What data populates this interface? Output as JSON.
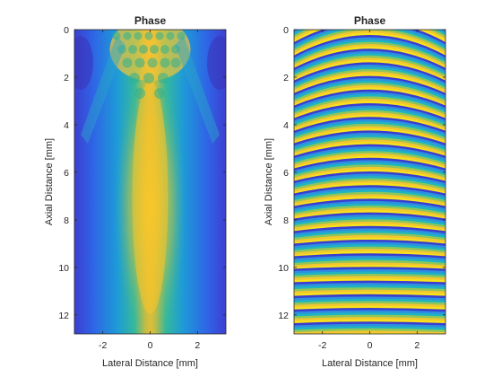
{
  "chart_data": [
    {
      "type": "heatmap",
      "panel": "left",
      "title": "Phase",
      "xlabel": "Lateral Distance [mm]",
      "ylabel": "Axial Distance [mm]",
      "xlim": [
        -3.2,
        3.2
      ],
      "ylim": [
        0,
        12.8
      ],
      "y_reversed": true,
      "xticks": [
        -2,
        0,
        2
      ],
      "yticks": [
        0,
        2,
        4,
        6,
        8,
        10,
        12
      ],
      "colormap": "parula",
      "description": "focused beam amplitude field: bright interference near top, tapering central lobe"
    },
    {
      "type": "heatmap",
      "panel": "right",
      "title": "Phase",
      "xlabel": "Lateral Distance [mm]",
      "ylabel": "Axial Distance [mm]",
      "xlim": [
        -3.2,
        3.2
      ],
      "ylim": [
        0,
        12.8
      ],
      "y_reversed": true,
      "xticks": [
        -2,
        0,
        2
      ],
      "yticks": [
        0,
        2,
        4,
        6,
        8,
        10,
        12
      ],
      "colormap": "parula",
      "description": "wrapped phase fronts: curved bands near top flattening with depth"
    }
  ]
}
